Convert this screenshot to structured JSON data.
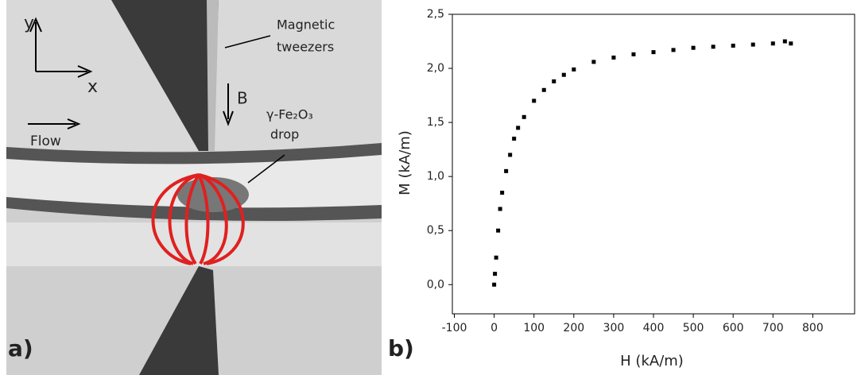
{
  "panel_a": {
    "label": "a)",
    "axis_y": "y",
    "axis_x": "x",
    "tweezers_line1": "Magnetic",
    "tweezers_line2": "tweezers",
    "field": "B",
    "drop_line1": "γ-Fe₂O₃",
    "drop_line2": "drop",
    "flow": "Flow"
  },
  "chart_data": {
    "type": "scatter",
    "panel_label": "b)",
    "x_label": "H (kA/m)",
    "y_label": "M (kA/m)",
    "x": [
      0,
      2,
      5,
      10,
      15,
      20,
      30,
      40,
      50,
      60,
      75,
      100,
      125,
      150,
      175,
      200,
      250,
      300,
      350,
      400,
      450,
      500,
      550,
      600,
      650,
      700,
      730,
      745
    ],
    "series": [
      {
        "name": "M",
        "color": "#000000",
        "values": [
          0.0,
          0.1,
          0.25,
          0.5,
          0.7,
          0.85,
          1.05,
          1.2,
          1.35,
          1.45,
          1.55,
          1.7,
          1.8,
          1.88,
          1.94,
          1.99,
          2.06,
          2.1,
          2.13,
          2.15,
          2.17,
          2.19,
          2.2,
          2.21,
          2.22,
          2.23,
          2.25,
          2.23
        ]
      }
    ],
    "xlim": [
      -105,
      905
    ],
    "ylim": [
      -0.27,
      2.5
    ],
    "xticks": [
      -100,
      0,
      100,
      200,
      300,
      400,
      500,
      600,
      700,
      800
    ],
    "yticks": [
      {
        "value": 0,
        "label": "0,0"
      },
      {
        "value": 0.5,
        "label": "0,5"
      },
      {
        "value": 1,
        "label": "1,0"
      },
      {
        "value": 1.5,
        "label": "1,5"
      },
      {
        "value": 2,
        "label": "2,0"
      },
      {
        "value": 2.5,
        "label": "2,5"
      }
    ]
  }
}
